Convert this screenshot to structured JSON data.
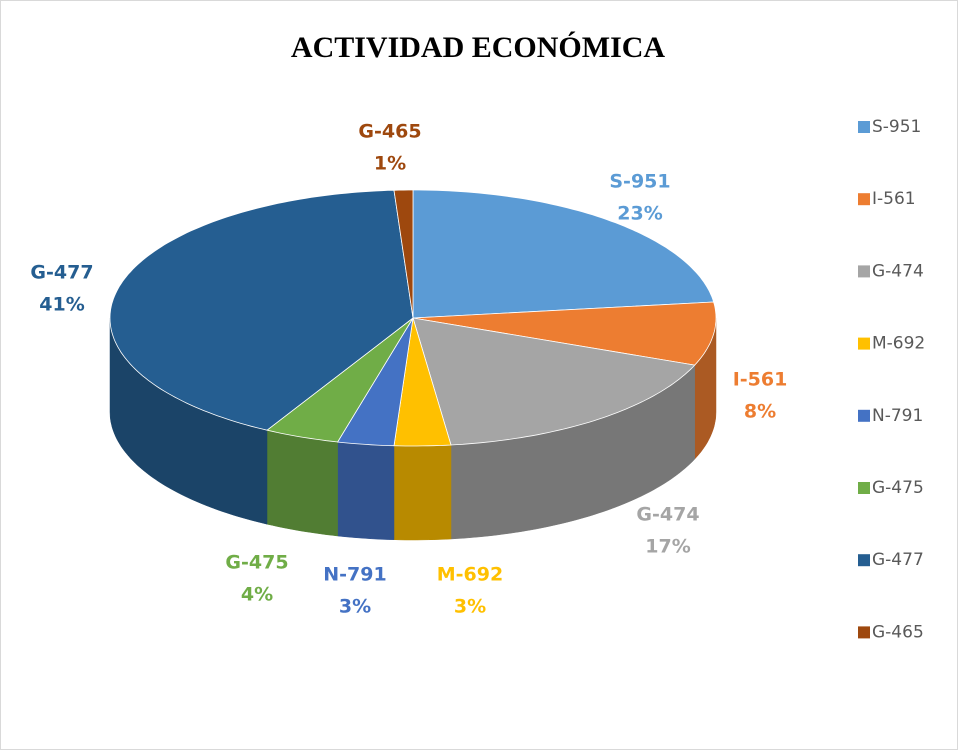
{
  "chart_data": {
    "type": "pie",
    "title": "ACTIVIDAD ECONÓMICA",
    "categories": [
      "S-951",
      "I-561",
      "G-474",
      "M-692",
      "N-791",
      "G-475",
      "G-477",
      "G-465"
    ],
    "values": [
      23,
      8,
      17,
      3,
      3,
      4,
      41,
      1
    ],
    "value_labels": [
      "23%",
      "8%",
      "17%",
      "3%",
      "3%",
      "4%",
      "41%",
      "1%"
    ],
    "colors": [
      "#5b9bd5",
      "#ed7d31",
      "#a5a5a5",
      "#ffc000",
      "#4472c4",
      "#70ad47",
      "#255e91",
      "#9e480e"
    ],
    "legend": "right"
  }
}
